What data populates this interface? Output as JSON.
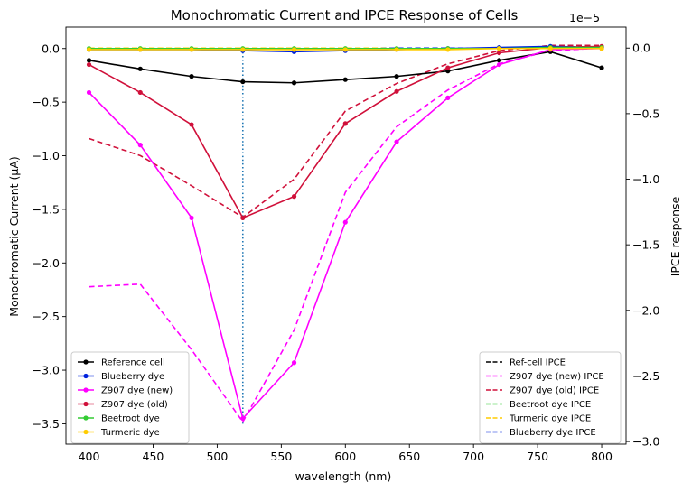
{
  "chart_data": {
    "type": "line",
    "title": "Monochromatic Current and IPCE Response of Cells",
    "xlabel": "wavelength (nm)",
    "ylabel_left": "Monochromatic Current (μA)",
    "ylabel_right": "IPCE response",
    "right_offset_label": "1e−5",
    "xlim": [
      382,
      819
    ],
    "ylim_left": [
      -3.69,
      0.2
    ],
    "ylim_right": [
      -3.02e-05,
      1.6e-06
    ],
    "x_ticks": [
      400,
      450,
      500,
      550,
      600,
      650,
      700,
      750,
      800
    ],
    "y_left_ticks": [
      0.0,
      -0.5,
      -1.0,
      -1.5,
      -2.0,
      -2.5,
      -3.0,
      -3.5
    ],
    "y_right_ticks": [
      0.0,
      -0.5,
      -1.0,
      -1.5,
      -2.0,
      -2.5,
      -3.0
    ],
    "y_left_tick_labels": [
      "0.0",
      "−0.5",
      "−1.0",
      "−1.5",
      "−2.0",
      "−2.5",
      "−3.0",
      "−3.5"
    ],
    "y_right_tick_labels": [
      "0.0",
      "−0.5",
      "−1.0",
      "−1.5",
      "−2.0",
      "−2.5",
      "−3.0"
    ],
    "vline_x": 520,
    "x": [
      400,
      440,
      480,
      520,
      560,
      600,
      640,
      680,
      720,
      760,
      800
    ],
    "current_series": [
      {
        "name": "Reference cell",
        "color": "#000000",
        "values": [
          -0.11,
          -0.19,
          -0.26,
          -0.31,
          -0.32,
          -0.29,
          -0.26,
          -0.21,
          -0.11,
          -0.03,
          -0.18
        ]
      },
      {
        "name": "Blueberry dye",
        "color": "#0022dd",
        "values": [
          -0.01,
          -0.01,
          -0.01,
          -0.02,
          -0.03,
          -0.02,
          -0.01,
          0.0,
          0.01,
          0.02,
          0.01
        ]
      },
      {
        "name": "Z907 dye (new)",
        "color": "#ff00ff",
        "values": [
          -0.41,
          -0.9,
          -1.58,
          -3.45,
          -2.93,
          -1.62,
          -0.87,
          -0.46,
          -0.15,
          -0.01,
          0.0
        ]
      },
      {
        "name": "Z907 dye (old)",
        "color": "#d0103a",
        "values": [
          -0.15,
          -0.41,
          -0.71,
          -1.58,
          -1.38,
          -0.7,
          -0.4,
          -0.18,
          -0.04,
          0.01,
          0.02
        ]
      },
      {
        "name": "Beetroot dye",
        "color": "#33cc33",
        "values": [
          0.0,
          0.0,
          0.0,
          0.0,
          0.0,
          0.0,
          0.0,
          0.0,
          0.0,
          0.01,
          0.01
        ]
      },
      {
        "name": "Turmeric dye",
        "color": "#ffcc00",
        "values": [
          -0.01,
          -0.01,
          -0.01,
          -0.01,
          -0.01,
          -0.01,
          -0.01,
          -0.01,
          0.0,
          0.0,
          0.0
        ]
      }
    ],
    "ipce_series": [
      {
        "name": "Ref-cell IPCE",
        "color": "#000000",
        "values": [
          0.0,
          0.0,
          0.0,
          0.0,
          0.0,
          0.0,
          0.0,
          0.0,
          0.0,
          0.0,
          0.0
        ]
      },
      {
        "name": "Z907 dye (new) IPCE",
        "color": "#ff00ff",
        "values": [
          -1.82e-05,
          -1.8e-05,
          -2.3e-05,
          -2.85e-05,
          -2.15e-05,
          -1.1e-05,
          -6e-06,
          -3.2e-06,
          -1.2e-06,
          -2e-07,
          0.0
        ]
      },
      {
        "name": "Z907 dye (old) IPCE",
        "color": "#d0103a",
        "values": [
          -6.9e-06,
          -8.2e-06,
          -1.05e-05,
          -1.29e-05,
          -1e-05,
          -4.8e-06,
          -2.7e-06,
          -1.2e-06,
          -2e-07,
          2e-07,
          2e-07
        ]
      },
      {
        "name": "Beetroot dye IPCE",
        "color": "#33cc33",
        "values": [
          0.0,
          0.0,
          0.0,
          0.0,
          0.0,
          0.0,
          0.0,
          0.0,
          0.0,
          0.0,
          0.0
        ]
      },
      {
        "name": "Turmeric dye IPCE",
        "color": "#ffcc00",
        "values": [
          0.0,
          0.0,
          0.0,
          0.0,
          0.0,
          0.0,
          0.0,
          0.0,
          0.0,
          0.0,
          0.0
        ]
      },
      {
        "name": "Blueberry dye IPCE",
        "color": "#0022dd",
        "values": [
          -1e-07,
          -1e-07,
          -1e-07,
          -1e-07,
          -1e-07,
          -1e-07,
          0.0,
          0.0,
          0.0,
          1e-07,
          1e-07
        ]
      }
    ],
    "legend_left_position": "lower-left",
    "legend_right_position": "lower-right",
    "grid": false
  }
}
